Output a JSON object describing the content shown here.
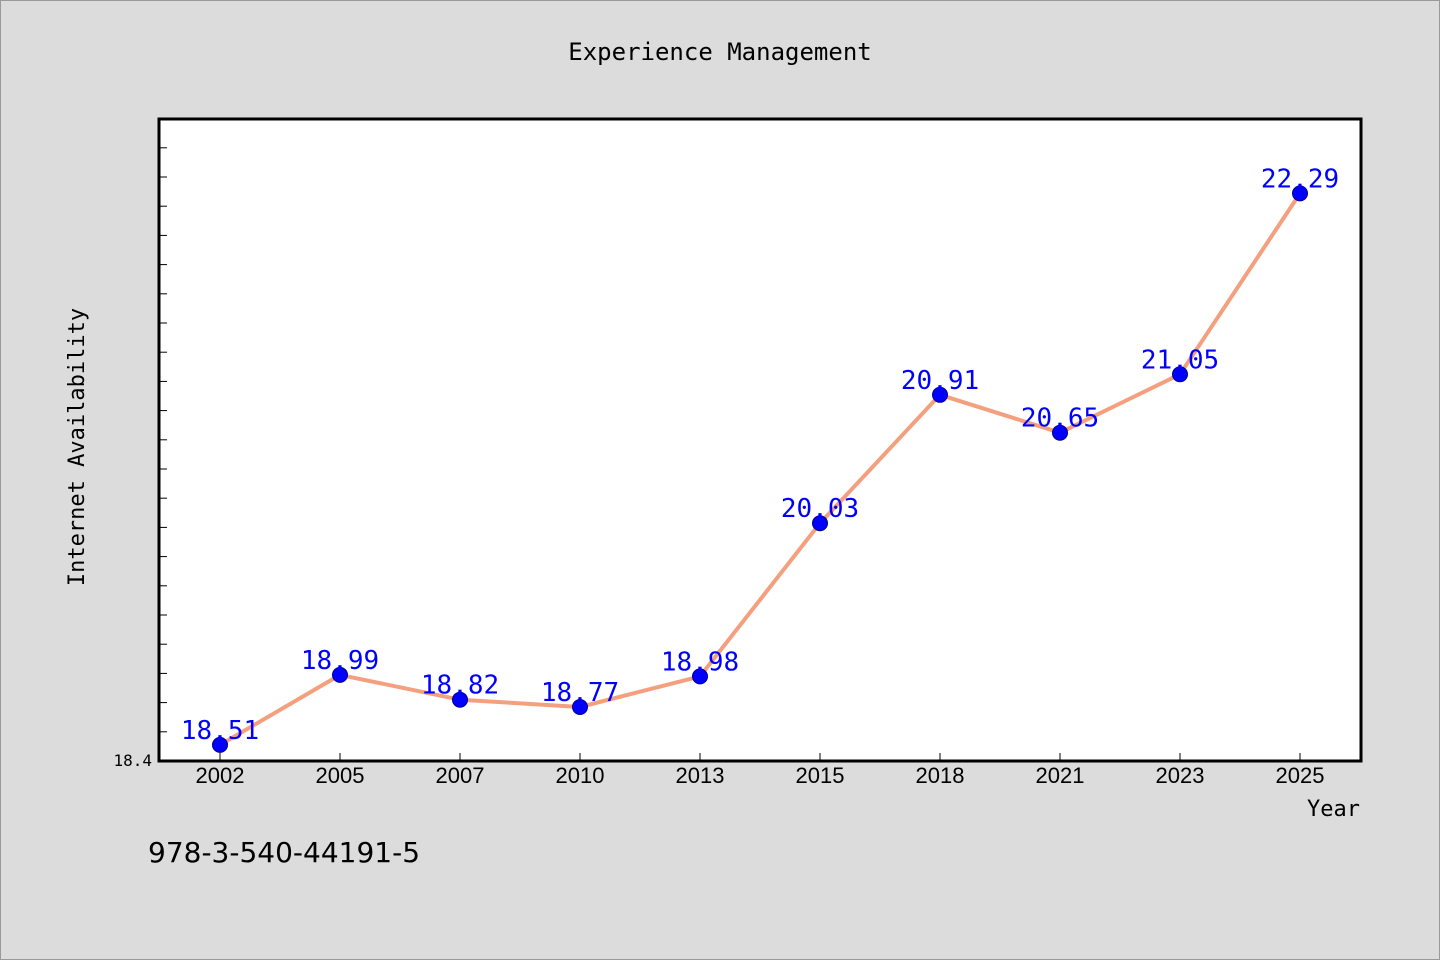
{
  "chart_data": {
    "type": "line",
    "title": "Experience Management",
    "xlabel": "Year",
    "ylabel": "Internet Availability",
    "x": [
      "2002",
      "2005",
      "2007",
      "2010",
      "2013",
      "2015",
      "2018",
      "2021",
      "2023",
      "2025"
    ],
    "series": [
      {
        "values": [
          18.51,
          18.99,
          18.82,
          18.77,
          18.98,
          20.03,
          20.91,
          20.65,
          21.05,
          22.29
        ]
      }
    ],
    "data_labels": [
      "18.51",
      "18.99",
      "18.82",
      "18.77",
      "18.98",
      "20.03",
      "20.91",
      "20.65",
      "21.05",
      "22.29"
    ],
    "ylim": [
      18.4,
      22.8
    ],
    "yticks_labeled": [
      "18.4"
    ],
    "grid": false,
    "legend": "none",
    "colors": {
      "background": "#dcdcdc",
      "plot_background": "#ffffff",
      "line": "#f4a07e",
      "marker": "#0000ff",
      "marker_edge": "#00008b",
      "data_label": "#0000ff",
      "text": "#000000"
    }
  },
  "footer_code": "978-3-540-44191-5"
}
